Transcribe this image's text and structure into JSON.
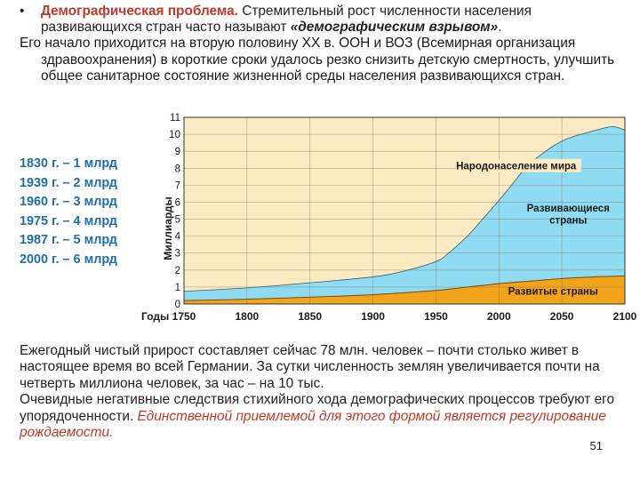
{
  "slide": {
    "bullet_symbol": "•",
    "heading_bold": "Демографическая проблема.",
    "heading_text": " Стремительный рост численности населения развивающихся стран часто называют ",
    "heading_emphasis": "«демографическим взрывом»",
    "heading_end": ".",
    "paragraph": "Его начало приходится на вторую половину XX в. ООН и ВОЗ (Всемирная организация здравоохранения) в короткие сроки удалось резко снизить детскую смертность, улучшить общее санитарное состояние жизненной среды населения развивающихся стран.",
    "milestones": [
      "1830 г. – 1 млрд",
      "1939 г. – 2 млрд",
      "1960 г. – 3 млрд",
      "1975 г. – 4 млрд",
      "1987 г. – 5 млрд",
      "2000 г. – 6 млрд"
    ],
    "bottom_para1": "Ежегодный чистый прирост составляет сейчас 78 млн. человек – почти столько живет в настоящее время во всей Германии. За сутки численность землян увеличивается почти на четверть миллиона человек, за час – на 10 тыс.",
    "bottom_para2_plain": "Очевидные негативные следствия стихийного хода демографических процессов требуют его упорядоченности. ",
    "bottom_para2_red": "Единственной приемлемой для этого формой является регулирование рождаемости.",
    "page_number": "51"
  },
  "chart_data": {
    "type": "area",
    "xlabel": "Годы",
    "ylabel": "Миллиарды",
    "xlim": [
      1750,
      2100
    ],
    "ylim": [
      0,
      11
    ],
    "x_ticks": [
      1750,
      1800,
      1850,
      1900,
      1950,
      2000,
      2050,
      2100
    ],
    "y_ticks": [
      0,
      1,
      2,
      3,
      4,
      5,
      6,
      7,
      8,
      9,
      10,
      11
    ],
    "grid": true,
    "colors": {
      "background": "#fbeac2",
      "world_fill": "#8fdcf2",
      "developed_fill": "#f2a51a",
      "grid": "#7a6a55"
    },
    "series": [
      {
        "name": "Народонаселение мира",
        "x": [
          1750,
          1800,
          1850,
          1900,
          1925,
          1950,
          1960,
          1975,
          1987,
          2000,
          2010,
          2025,
          2050,
          2075,
          2090,
          2100
        ],
        "values": [
          0.75,
          0.95,
          1.25,
          1.6,
          1.95,
          2.5,
          3.0,
          4.0,
          5.0,
          6.1,
          7.0,
          8.3,
          9.6,
          10.2,
          10.45,
          10.25
        ]
      },
      {
        "name": "Развитые страны",
        "x": [
          1750,
          1800,
          1850,
          1900,
          1950,
          1975,
          2000,
          2025,
          2050,
          2075,
          2100
        ],
        "values": [
          0.2,
          0.28,
          0.4,
          0.55,
          0.8,
          1.0,
          1.2,
          1.35,
          1.5,
          1.6,
          1.65
        ]
      }
    ],
    "annotations": [
      "Народонаселение мира",
      "Развивающиеся страны",
      "Развитые страны"
    ]
  }
}
